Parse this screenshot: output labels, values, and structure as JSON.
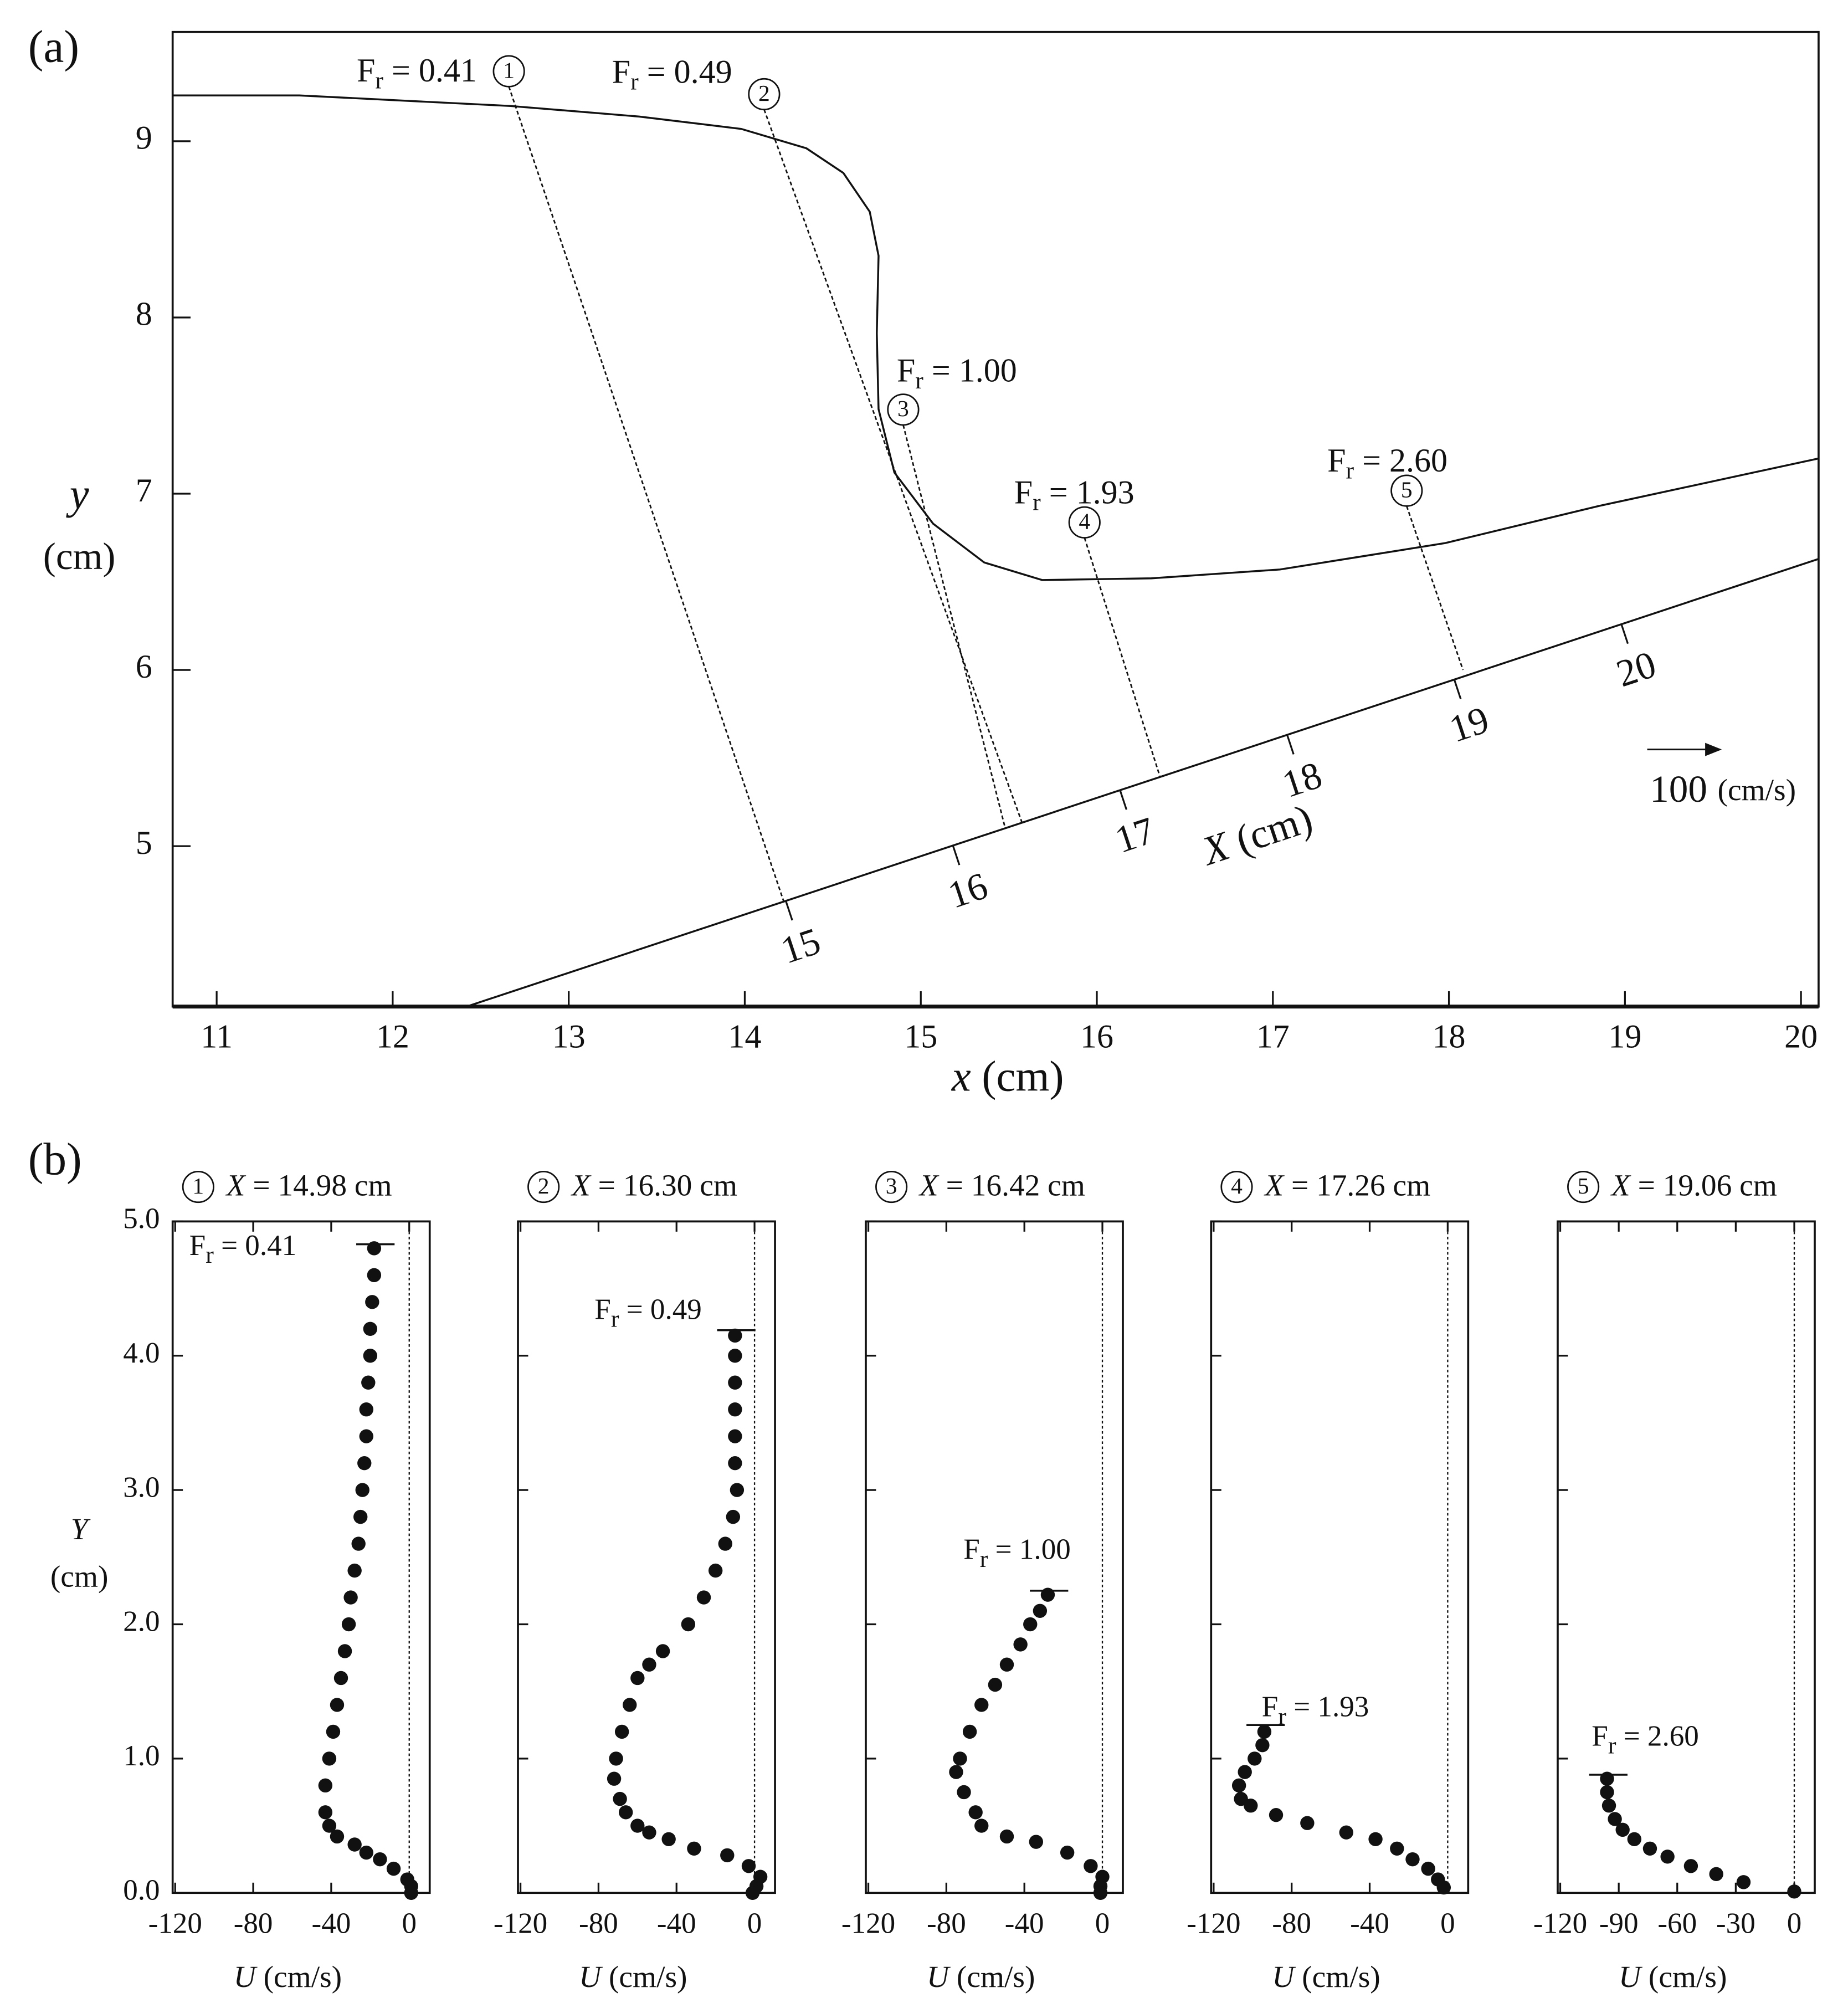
{
  "chart_data": [
    {
      "type": "field",
      "panel_label": "(a)",
      "xlabel": "x  (cm)",
      "ylabel": [
        "y",
        "(cm)"
      ],
      "xlim": [
        10.75,
        20.1
      ],
      "ylim": [
        4.09,
        9.62
      ],
      "xticks": [
        11,
        12,
        13,
        14,
        15,
        16,
        17,
        18,
        19,
        20
      ],
      "yticks": [
        5,
        6,
        7,
        8,
        9
      ],
      "surface": {
        "x": [
          10.75,
          11.47,
          12.67,
          13.4,
          13.98,
          14.35,
          14.56,
          14.71,
          14.76,
          14.75,
          14.76,
          14.85,
          15.07,
          15.36,
          15.69,
          16.31,
          17.04,
          17.98,
          18.85,
          20.1
        ],
        "y": [
          9.26,
          9.26,
          9.2,
          9.14,
          9.07,
          8.96,
          8.82,
          8.6,
          8.35,
          7.91,
          7.48,
          7.12,
          6.83,
          6.61,
          6.51,
          6.52,
          6.57,
          6.72,
          6.93,
          7.2
        ]
      },
      "bed": {
        "x": [
          12.42,
          20.1
        ],
        "y": [
          4.09,
          6.63
        ],
        "X": [
          13.09,
          21.18
        ],
        "ticks": [
          15,
          16,
          17,
          18,
          19,
          20
        ],
        "label": "X (cm)"
      },
      "annotations": [
        {
          "label": "Fr = 0.41",
          "circle": 1,
          "x": [
            12.66,
            14.22
          ],
          "y": [
            9.31,
            4.69
          ]
        },
        {
          "label": "Fr = 0.49",
          "circle": 2,
          "x": [
            14.11,
            15.58
          ],
          "y": [
            9.18,
            5.12
          ]
        },
        {
          "label": "Fr = 1.00",
          "circle": 3,
          "x": [
            14.9,
            15.48
          ],
          "y": [
            7.39,
            5.1
          ]
        },
        {
          "label": "Fr = 1.93",
          "circle": 4,
          "x": [
            15.93,
            16.36
          ],
          "y": [
            6.75,
            5.39
          ]
        },
        {
          "label": "Fr = 2.60",
          "circle": 5,
          "x": [
            17.76,
            18.08
          ],
          "y": [
            6.93,
            6.0
          ]
        }
      ],
      "scale_arrow": {
        "value": 100,
        "unit": "(cm/s)"
      }
    },
    {
      "type": "scatter",
      "panel_label": "(b)",
      "circle": 1,
      "title": "X = 14.98 cm",
      "xlabel": "U (cm/s)",
      "ylabel": [
        "Y",
        "(cm)"
      ],
      "xlim": [
        -121.3,
        10.5
      ],
      "ylim": [
        0,
        5
      ],
      "xticks": [
        -120,
        -80,
        -40,
        0
      ],
      "yticks": [
        {
          "value": 0,
          "label": "0.0"
        },
        {
          "value": 1,
          "label": "1.0"
        },
        {
          "value": 2,
          "label": "2.0"
        },
        {
          "value": 3,
          "label": "3.0"
        },
        {
          "value": 4,
          "label": "4.0"
        },
        {
          "value": 5,
          "label": "5.0"
        }
      ],
      "surface_Y": 4.83,
      "label": "Fr = 0.41",
      "x": [
        -18,
        -18,
        -19,
        -20,
        -20,
        -21,
        -22,
        -22,
        -23,
        -24,
        -25,
        -26,
        -28,
        -30,
        -31,
        -33,
        -35,
        -37,
        -39,
        -41,
        -43,
        -43,
        -41,
        -37,
        -28,
        -22,
        -15,
        -8,
        -1,
        1,
        1
      ],
      "values": [
        4.8,
        4.6,
        4.4,
        4.2,
        4.0,
        3.8,
        3.6,
        3.4,
        3.2,
        3.0,
        2.8,
        2.6,
        2.4,
        2.2,
        2.0,
        1.8,
        1.6,
        1.4,
        1.2,
        1.0,
        0.8,
        0.6,
        0.5,
        0.42,
        0.36,
        0.3,
        0.25,
        0.18,
        0.1,
        0.05,
        0.0
      ]
    },
    {
      "type": "scatter",
      "circle": 2,
      "title": "X = 16.30 cm",
      "xlabel": "U (cm/s)",
      "xlim": [
        -121.3,
        10.5
      ],
      "ylim": [
        0,
        5
      ],
      "xticks": [
        -120,
        -80,
        -40,
        0
      ],
      "yticks": [
        0,
        1,
        2,
        3,
        4,
        5
      ],
      "surface_Y": 4.19,
      "label": "Fr = 0.49",
      "x": [
        -10,
        -10,
        -10,
        -10,
        -10,
        -10,
        -9,
        -11,
        -15,
        -20,
        -26,
        -34,
        -47,
        -54,
        -60,
        -64,
        -68,
        -71,
        -72,
        -69,
        -66,
        -60,
        -54,
        -44,
        -31,
        -14,
        -3,
        3,
        1,
        -1
      ],
      "values": [
        4.15,
        4.0,
        3.8,
        3.6,
        3.4,
        3.2,
        3.0,
        2.8,
        2.6,
        2.4,
        2.2,
        2.0,
        1.8,
        1.7,
        1.6,
        1.4,
        1.2,
        1.0,
        0.85,
        0.7,
        0.6,
        0.5,
        0.45,
        0.4,
        0.33,
        0.28,
        0.2,
        0.12,
        0.05,
        0.0
      ]
    },
    {
      "type": "scatter",
      "circle": 3,
      "title": "X = 16.42 cm",
      "xlabel": "U (cm/s)",
      "xlim": [
        -121.3,
        10.5
      ],
      "ylim": [
        0,
        5
      ],
      "xticks": [
        -120,
        -80,
        -40,
        0
      ],
      "yticks": [
        0,
        1,
        2,
        3,
        4,
        5
      ],
      "surface_Y": 2.25,
      "label": "Fr = 1.00",
      "x": [
        -28,
        -32,
        -37,
        -42,
        -49,
        -55,
        -62,
        -68,
        -73,
        -75,
        -71,
        -65,
        -62,
        -49,
        -34,
        -18,
        -6,
        0,
        -1,
        -1
      ],
      "values": [
        2.22,
        2.1,
        2.0,
        1.85,
        1.7,
        1.55,
        1.4,
        1.2,
        1.0,
        0.9,
        0.75,
        0.6,
        0.5,
        0.42,
        0.38,
        0.3,
        0.2,
        0.12,
        0.05,
        0.0
      ]
    },
    {
      "type": "scatter",
      "circle": 4,
      "title": "X = 17.26 cm",
      "xlabel": "U (cm/s)",
      "xlim": [
        -121.3,
        10.5
      ],
      "ylim": [
        0,
        5
      ],
      "xticks": [
        -120,
        -80,
        -40,
        0
      ],
      "yticks": [
        0,
        1,
        2,
        3,
        4,
        5
      ],
      "surface_Y": 1.25,
      "label": "Fr = 1.93",
      "x": [
        -94,
        -95,
        -99,
        -104,
        -107,
        -106,
        -101,
        -88,
        -72,
        -52,
        -37,
        -26,
        -18,
        -10,
        -5,
        -2
      ],
      "values": [
        1.2,
        1.1,
        1.0,
        0.9,
        0.8,
        0.7,
        0.65,
        0.58,
        0.52,
        0.45,
        0.4,
        0.33,
        0.25,
        0.18,
        0.1,
        0.04
      ]
    },
    {
      "type": "scatter",
      "circle": 5,
      "title": "X = 19.06 cm",
      "xlabel": "U (cm/s)",
      "xlim": [
        -121.3,
        10.5
      ],
      "ylim": [
        0,
        5
      ],
      "xticks": [
        -120,
        -90,
        -60,
        -30,
        0
      ],
      "yticks": [
        0,
        1,
        2,
        3,
        4,
        5
      ],
      "surface_Y": 0.88,
      "label": "Fr = 2.60",
      "x": [
        -96,
        -96,
        -95,
        -92,
        -88,
        -82,
        -74,
        -65,
        -53,
        -40,
        -26,
        0
      ],
      "values": [
        0.85,
        0.75,
        0.65,
        0.55,
        0.47,
        0.4,
        0.33,
        0.27,
        0.2,
        0.14,
        0.08,
        0.01
      ]
    }
  ]
}
